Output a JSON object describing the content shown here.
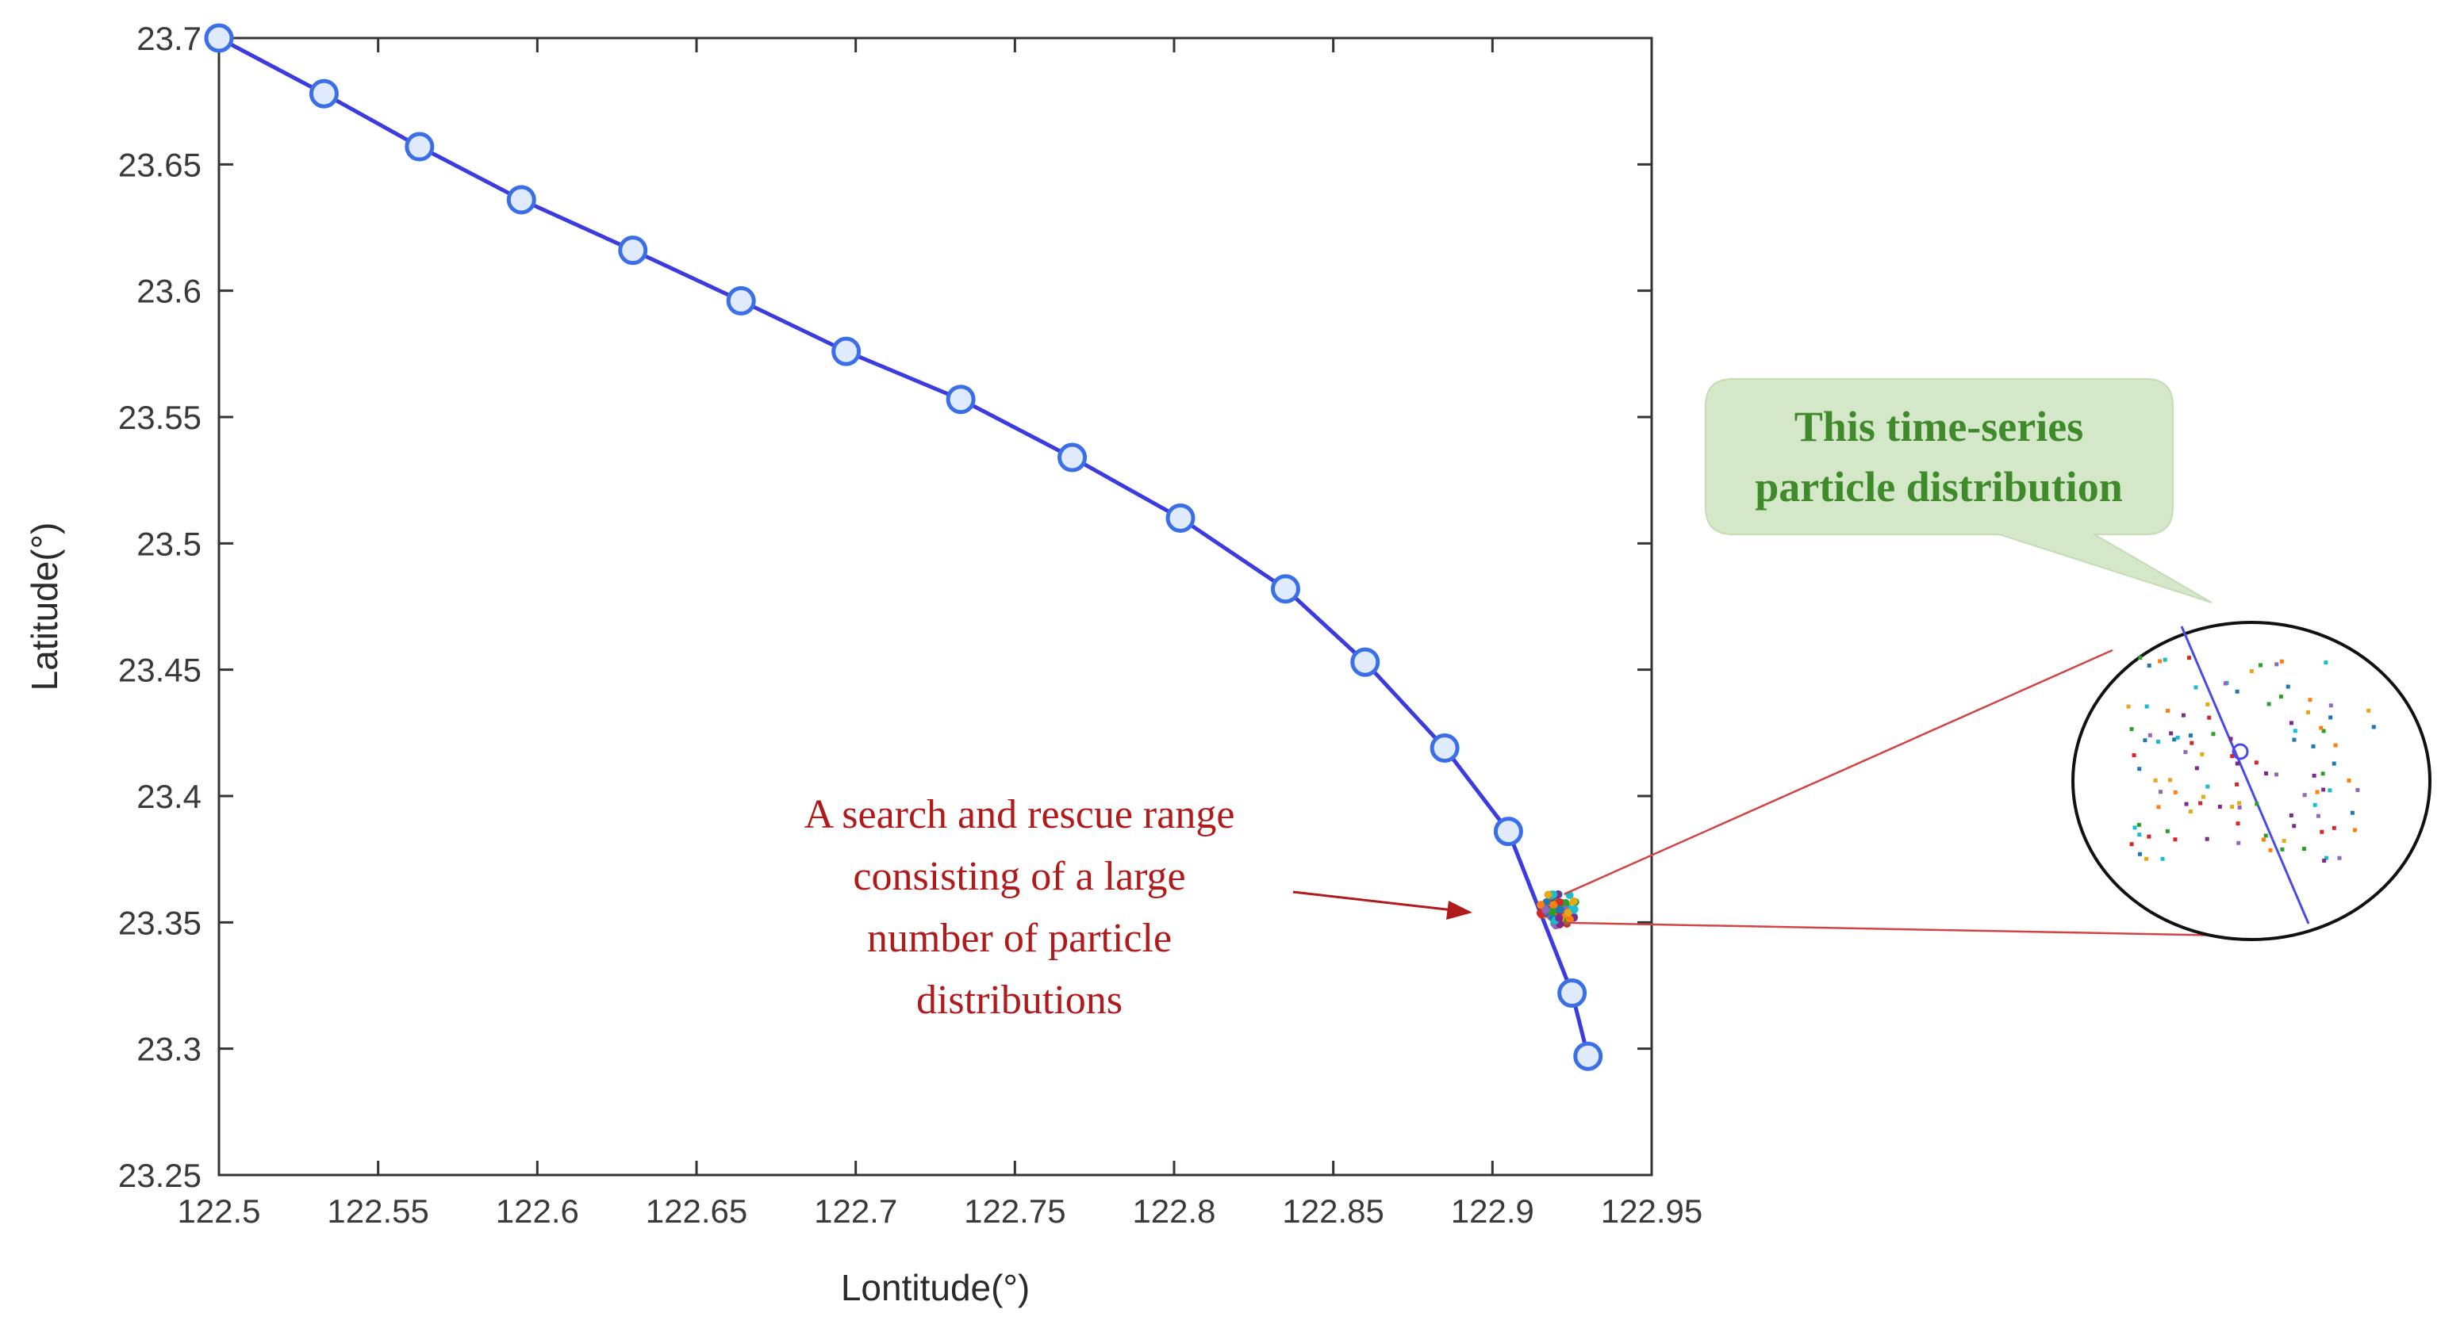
{
  "chart_data": {
    "type": "line",
    "xlabel": "Lontitude(°)",
    "ylabel": "Latitude(°)",
    "xlim": [
      122.5,
      122.95
    ],
    "ylim": [
      23.25,
      23.7
    ],
    "x_ticks": [
      "122.5",
      "122.55",
      "122.6",
      "122.65",
      "122.7",
      "122.75",
      "122.8",
      "122.85",
      "122.9",
      "122.95"
    ],
    "y_ticks": [
      "23.25",
      "23.3",
      "23.35",
      "23.4",
      "23.45",
      "23.5",
      "23.55",
      "23.6",
      "23.65",
      "23.7"
    ],
    "grid": false,
    "colors": {
      "line": "#3b3bdf",
      "marker_edge": "#3b6fe8",
      "marker_fill": "#dfeafd",
      "annotation": "#b01a1a",
      "callout_fill": "#d4e7c9",
      "callout_text": "#3f8a2a"
    },
    "series": [
      {
        "x": [
          122.5,
          122.533,
          122.563,
          122.595,
          122.63,
          122.664,
          122.697,
          122.733,
          122.768,
          122.802,
          122.835,
          122.86,
          122.885,
          122.905,
          122.925,
          122.93
        ],
        "y": [
          23.7,
          23.678,
          23.657,
          23.636,
          23.616,
          23.596,
          23.576,
          23.557,
          23.534,
          23.51,
          23.482,
          23.453,
          23.419,
          23.386,
          23.322,
          23.297
        ]
      }
    ],
    "annotations": {
      "search_range": [
        "A search and rescue range",
        "consisting of a large",
        "number of particle",
        "distributions"
      ],
      "callout": [
        "This time-series",
        "particle distribution"
      ]
    }
  }
}
